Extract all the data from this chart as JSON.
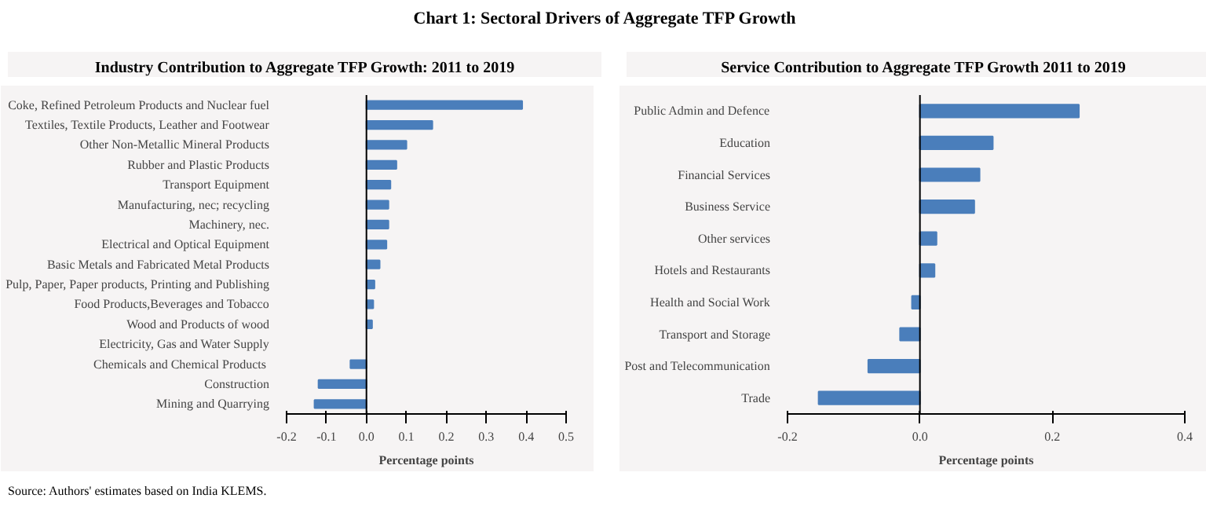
{
  "chart_data": [
    {
      "type": "bar",
      "orientation": "horizontal",
      "title": "Industry Contribution to Aggregate TFP Growth: 2011 to 2019",
      "xlabel": "Percentage points",
      "annotations": [
        "Chart 1: Sectoral Drivers of Aggregate TFP Growth",
        "Source: Authors' estimates based on India KLEMS."
      ],
      "categories": [
        "Coke, Refined Petroleum Products and Nuclear fuel",
        "Textiles, Textile Products, Leather and Footwear",
        "Other Non-Metallic Mineral Products",
        "Rubber and Plastic Products",
        "Transport Equipment",
        "Manufacturing, nec; recycling",
        "Machinery, nec.",
        "Electrical and Optical Equipment",
        "Basic Metals and Fabricated Metal Products",
        "Pulp, Paper, Paper products, Printing and Publishing",
        "Food Products,Beverages and Tobacco",
        "Wood and Products of wood",
        "Electricity, Gas and Water Supply",
        "Chemicals and  Chemical Products",
        "Construction",
        "Mining and Quarrying"
      ],
      "values": [
        0.39,
        0.165,
        0.1,
        0.075,
        0.06,
        0.055,
        0.055,
        0.05,
        0.033,
        0.02,
        0.017,
        0.014,
        null,
        -0.04,
        -0.12,
        -0.13
      ],
      "color": "#4a7ebb",
      "xlim": [
        -0.2,
        0.5
      ],
      "xticks": [
        -0.2,
        -0.1,
        {
          "value": 0,
          "label": "0.0"
        },
        0.1,
        0.2,
        0.3,
        0.4,
        0.5
      ],
      "grid": false,
      "ref_lines": [
        {
          "axis": "x",
          "value": 0,
          "label": null,
          "color": "#000000"
        }
      ]
    },
    {
      "type": "bar",
      "orientation": "horizontal",
      "title": "Service Contribution to Aggregate TFP Growth 2011 to 2019",
      "xlabel": "Percentage points",
      "categories": [
        "Public Admin and Defence",
        "Education",
        "Financial Services",
        "Business Service",
        "Other services",
        "Hotels and Restaurants",
        "Health and Social Work",
        "Transport and Storage",
        "Post and Telecommunication",
        "Trade"
      ],
      "values": [
        0.24,
        0.11,
        0.09,
        0.082,
        0.025,
        0.022,
        -0.012,
        -0.03,
        -0.078,
        -0.153
      ],
      "color": "#4a7ebb",
      "xlim": [
        -0.2,
        0.4
      ],
      "xticks": [
        {
          "value": -0.2,
          "label": "-0.2"
        },
        {
          "value": 0,
          "label": "0.0"
        },
        {
          "value": 0.2,
          "label": "0.2"
        },
        {
          "value": 0.4,
          "label": "0.4"
        }
      ],
      "grid": false,
      "ref_lines": [
        {
          "axis": "x",
          "value": 0,
          "label": null,
          "color": "#000000"
        }
      ]
    }
  ]
}
